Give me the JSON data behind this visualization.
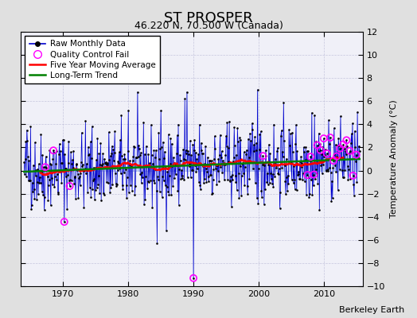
{
  "title": "ST PROSPER",
  "subtitle": "46.220 N, 70.500 W (Canada)",
  "ylabel": "Temperature Anomaly (°C)",
  "credit": "Berkeley Earth",
  "xlim": [
    1963.5,
    2016
  ],
  "ylim": [
    -10,
    12
  ],
  "yticks": [
    -10,
    -8,
    -6,
    -4,
    -2,
    0,
    2,
    4,
    6,
    8,
    10,
    12
  ],
  "xticks": [
    1970,
    1980,
    1990,
    2000,
    2010
  ],
  "fig_bg_color": "#e0e0e0",
  "plot_bg_color": "#f0f0f8",
  "seed": 42
}
